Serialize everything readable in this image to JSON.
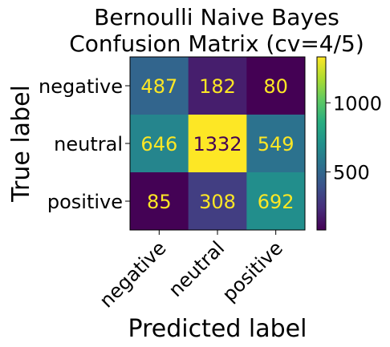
{
  "chart_data": {
    "type": "heatmap",
    "title_lines": [
      "Bernoulli Naive Bayes",
      "Confusion Matrix (cv=4/5)"
    ],
    "xlabel": "Predicted label",
    "ylabel": "True label",
    "x_categories": [
      "negative",
      "neutral",
      "positive"
    ],
    "y_categories": [
      "negative",
      "neutral",
      "positive"
    ],
    "values": [
      [
        487,
        182,
        80
      ],
      [
        646,
        1332,
        549
      ],
      [
        85,
        308,
        692
      ]
    ],
    "colormap": "viridis",
    "color_range": [
      80,
      1332
    ],
    "colorbar_ticks": [
      500,
      1000
    ],
    "text_color_low": "#fde725",
    "text_color_high": "#440154"
  }
}
